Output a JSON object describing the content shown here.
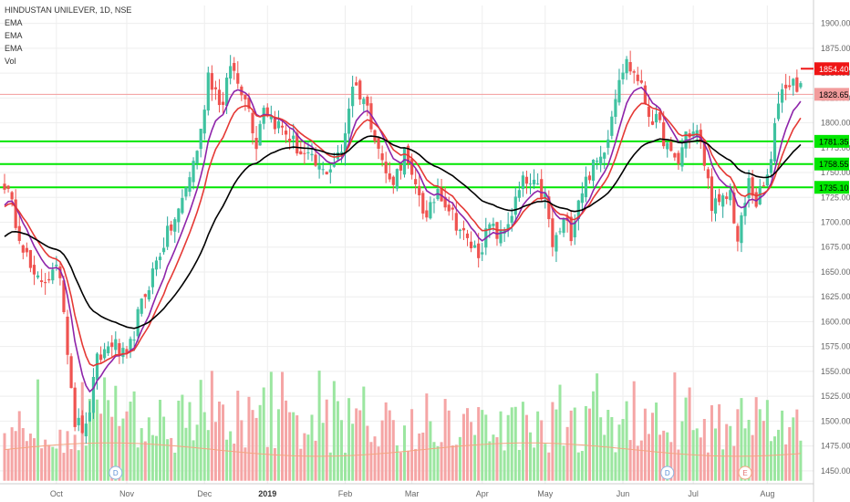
{
  "legend": {
    "title": "HINDUSTAN UNILEVER, 1D, NSE",
    "items": [
      "EMA",
      "EMA",
      "EMA",
      "Vol"
    ]
  },
  "colors": {
    "up": "#26a69a",
    "up_fill": "#3fc2a0",
    "down": "#ef5350",
    "vol_up": "#9be6a0",
    "vol_down": "#f5a5a5",
    "ema_fast": "#8e24aa",
    "ema_mid": "#e53935",
    "ema_slow": "#000000",
    "hlines": "#00e600",
    "grid": "#eeeeee",
    "axis_text": "#666666"
  },
  "chart_data": {
    "type": "line",
    "title": "HINDUSTAN UNILEVER, 1D, NSE",
    "ylim": [
      1437,
      1918
    ],
    "y_ticks": [
      1450,
      1475,
      1500,
      1525,
      1550,
      1575,
      1600,
      1625,
      1650,
      1675,
      1700,
      1725,
      1750,
      1775,
      1800,
      1825,
      1850,
      1875,
      1900
    ],
    "x_ticks": [
      {
        "label": "Oct",
        "i": 14
      },
      {
        "label": "Nov",
        "i": 33
      },
      {
        "label": "Dec",
        "i": 54
      },
      {
        "label": "2019",
        "i": 71
      },
      {
        "label": "Feb",
        "i": 92
      },
      {
        "label": "Mar",
        "i": 110
      },
      {
        "label": "Apr",
        "i": 129
      },
      {
        "label": "May",
        "i": 146
      },
      {
        "label": "Jun",
        "i": 167
      },
      {
        "label": "Jul",
        "i": 186
      },
      {
        "label": "Aug",
        "i": 206
      }
    ],
    "n_bars": 216,
    "price_anchors": [
      [
        0,
        1740
      ],
      [
        8,
        1640
      ],
      [
        15,
        1650
      ],
      [
        19,
        1500
      ],
      [
        22,
        1490
      ],
      [
        25,
        1560
      ],
      [
        29,
        1580
      ],
      [
        33,
        1560
      ],
      [
        36,
        1605
      ],
      [
        40,
        1650
      ],
      [
        43,
        1680
      ],
      [
        47,
        1710
      ],
      [
        51,
        1760
      ],
      [
        53,
        1790
      ],
      [
        55,
        1850
      ],
      [
        59,
        1815
      ],
      [
        61,
        1860
      ],
      [
        63,
        1840
      ],
      [
        65,
        1830
      ],
      [
        68,
        1780
      ],
      [
        70,
        1820
      ],
      [
        72,
        1805
      ],
      [
        76,
        1790
      ],
      [
        80,
        1770
      ],
      [
        83,
        1760
      ],
      [
        86,
        1750
      ],
      [
        89,
        1760
      ],
      [
        91,
        1770
      ],
      [
        94,
        1840
      ],
      [
        97,
        1825
      ],
      [
        100,
        1790
      ],
      [
        102,
        1760
      ],
      [
        104,
        1740
      ],
      [
        106,
        1750
      ],
      [
        108,
        1770
      ],
      [
        110,
        1740
      ],
      [
        112,
        1730
      ],
      [
        114,
        1700
      ],
      [
        117,
        1735
      ],
      [
        120,
        1715
      ],
      [
        122,
        1700
      ],
      [
        125,
        1680
      ],
      [
        128,
        1670
      ],
      [
        131,
        1695
      ],
      [
        134,
        1685
      ],
      [
        137,
        1710
      ],
      [
        140,
        1740
      ],
      [
        143,
        1735
      ],
      [
        146,
        1725
      ],
      [
        148,
        1675
      ],
      [
        151,
        1700
      ],
      [
        153,
        1690
      ],
      [
        155,
        1725
      ],
      [
        158,
        1750
      ],
      [
        161,
        1765
      ],
      [
        163,
        1790
      ],
      [
        166,
        1850
      ],
      [
        168,
        1860
      ],
      [
        171,
        1845
      ],
      [
        174,
        1810
      ],
      [
        177,
        1795
      ],
      [
        180,
        1765
      ],
      [
        182,
        1760
      ],
      [
        184,
        1790
      ],
      [
        187,
        1790
      ],
      [
        189,
        1760
      ],
      [
        191,
        1720
      ],
      [
        193,
        1715
      ],
      [
        196,
        1730
      ],
      [
        198,
        1680
      ],
      [
        201,
        1740
      ],
      [
        203,
        1720
      ],
      [
        205,
        1735
      ],
      [
        207,
        1760
      ],
      [
        209,
        1825
      ],
      [
        211,
        1840
      ],
      [
        213,
        1840
      ],
      [
        215,
        1838
      ]
    ],
    "ema_periods": [
      8,
      13,
      34
    ],
    "series": [
      {
        "name": "EMA",
        "color": "#8e24aa"
      },
      {
        "name": "EMA",
        "color": "#e53935"
      },
      {
        "name": "EMA",
        "color": "#000000"
      }
    ],
    "horizontal_levels": [
      {
        "price": 1781.35,
        "label": "1781.35",
        "color": "#00e600",
        "text": "#000000"
      },
      {
        "price": 1758.55,
        "label": "1758.55",
        "color": "#00e600",
        "text": "#000000"
      },
      {
        "price": 1735.1,
        "label": "1735.10",
        "color": "#00e600",
        "text": "#000000"
      },
      {
        "price": 1828.65,
        "label": "1828.65",
        "color": "#f29c9c",
        "text": "#000000"
      },
      {
        "price": 1854.4,
        "label": "1854.40",
        "color": "#ef1515",
        "text": "#ffffff"
      }
    ],
    "event_markers": [
      {
        "i": 30,
        "label": "D"
      },
      {
        "i": 179,
        "label": "D"
      },
      {
        "i": 200,
        "label": "E"
      }
    ],
    "volume_base_price": 1440,
    "volume_max_price": 1552
  }
}
